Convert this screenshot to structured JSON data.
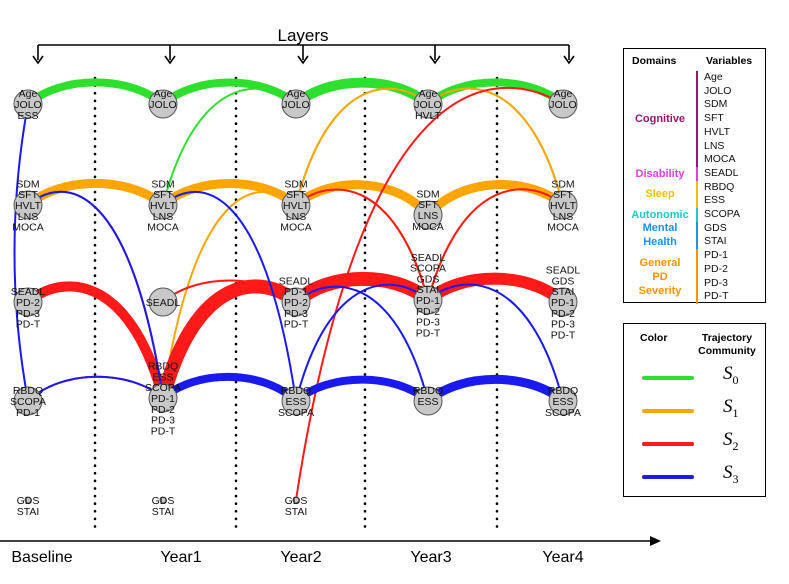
{
  "title": "Layers",
  "years": [
    "Baseline",
    "Year1",
    "Year2",
    "Year3",
    "Year4"
  ],
  "colors": {
    "S0": "#2ee02e",
    "S1": "#ffa500",
    "S2": "#ff1a1a",
    "S3": "#1a1aee"
  },
  "layers": [
    {
      "name": "Baseline",
      "nodes": [
        {
          "lines": [
            "Age",
            "JOLO",
            "ESS"
          ]
        },
        {
          "lines": [
            "SDM",
            "SFT",
            "HVLT",
            "LNS",
            "MOCA"
          ]
        },
        {
          "lines": [
            "SEADL",
            "PD-2",
            "PD-3",
            "PD-T"
          ]
        },
        {
          "lines": [
            "RBDQ",
            "SCOPA",
            "PD-1"
          ]
        },
        {
          "lines": [
            "GDS",
            "STAI"
          ]
        }
      ]
    },
    {
      "name": "Year1",
      "nodes": [
        {
          "lines": [
            "Age",
            "JOLO"
          ]
        },
        {
          "lines": [
            "SDM",
            "SFT",
            "HVLT",
            "LNS",
            "MOCA"
          ]
        },
        {
          "lines": [
            "SEADL"
          ]
        },
        {
          "lines": [
            "RBDQ",
            "ESS",
            "SCOPA",
            "PD-1",
            "PD-2",
            "PD-3",
            "PD-T"
          ]
        },
        {
          "lines": [
            "GDS",
            "STAI"
          ]
        }
      ]
    },
    {
      "name": "Year2",
      "nodes": [
        {
          "lines": [
            "Age",
            "JOLO"
          ]
        },
        {
          "lines": [
            "SDM",
            "SFT",
            "HVLT",
            "LNS",
            "MOCA"
          ]
        },
        {
          "lines": [
            "SEADL",
            "PD-1",
            "PD-2",
            "PD-3",
            "PD-T"
          ]
        },
        {
          "lines": [
            "RBDQ",
            "ESS",
            "SCOPA"
          ]
        },
        {
          "lines": [
            "GDS",
            "STAI"
          ]
        }
      ]
    },
    {
      "name": "Year3",
      "nodes": [
        {
          "lines": [
            "Age",
            "JOLO",
            "HVLT"
          ]
        },
        {
          "lines": [
            "SDM",
            "SFT",
            "LNS",
            "MOCA"
          ]
        },
        {
          "lines": [
            "SEADL",
            "SCOPA",
            "GDS",
            "STAI",
            "PD-1",
            "PD-2",
            "PD-3",
            "PD-T"
          ]
        },
        {
          "lines": [
            "RBDQ",
            "ESS"
          ]
        }
      ]
    },
    {
      "name": "Year4",
      "nodes": [
        {
          "lines": [
            "Age",
            "JOLO"
          ]
        },
        {
          "lines": [
            "SDM",
            "SFT",
            "HVLT",
            "LNS",
            "MOCA"
          ]
        },
        {
          "lines": [
            "SEADL",
            "GDS",
            "STAI",
            "PD-1",
            "PD-2",
            "PD-3",
            "PD-T"
          ]
        },
        {
          "lines": [
            "RBDQ",
            "ESS",
            "SCOPA"
          ]
        }
      ]
    }
  ],
  "edges": [
    {
      "from": [
        0,
        0
      ],
      "to": [
        1,
        0
      ],
      "community": "S0",
      "weight": 8
    },
    {
      "from": [
        1,
        0
      ],
      "to": [
        2,
        0
      ],
      "community": "S0",
      "weight": 8
    },
    {
      "from": [
        2,
        0
      ],
      "to": [
        3,
        0
      ],
      "community": "S0",
      "weight": 10
    },
    {
      "from": [
        3,
        0
      ],
      "to": [
        4,
        0
      ],
      "community": "S0",
      "weight": 8
    },
    {
      "from": [
        0,
        1
      ],
      "to": [
        1,
        1
      ],
      "community": "S0",
      "weight": 2
    },
    {
      "from": [
        1,
        1
      ],
      "to": [
        2,
        0
      ],
      "community": "S0",
      "weight": 2
    },
    {
      "from": [
        2,
        1
      ],
      "to": [
        3,
        0
      ],
      "community": "S0",
      "weight": 2
    },
    {
      "from": [
        3,
        0
      ],
      "to": [
        4,
        1
      ],
      "community": "S0",
      "weight": 2
    },
    {
      "from": [
        0,
        1
      ],
      "to": [
        1,
        1
      ],
      "community": "S1",
      "weight": 9
    },
    {
      "from": [
        1,
        1
      ],
      "to": [
        2,
        1
      ],
      "community": "S1",
      "weight": 9
    },
    {
      "from": [
        2,
        1
      ],
      "to": [
        3,
        1
      ],
      "community": "S1",
      "weight": 9
    },
    {
      "from": [
        3,
        1
      ],
      "to": [
        4,
        1
      ],
      "community": "S1",
      "weight": 9
    },
    {
      "from": [
        2,
        1
      ],
      "to": [
        3,
        0
      ],
      "community": "S1",
      "weight": 2
    },
    {
      "from": [
        3,
        0
      ],
      "to": [
        4,
        1
      ],
      "community": "S1",
      "weight": 2
    },
    {
      "from": [
        0,
        2
      ],
      "to": [
        1,
        3
      ],
      "community": "S1",
      "weight": 2
    },
    {
      "from": [
        1,
        3
      ],
      "to": [
        2,
        1
      ],
      "community": "S1",
      "weight": 2
    },
    {
      "from": [
        2,
        1
      ],
      "to": [
        3,
        2
      ],
      "community": "S1",
      "weight": 2
    },
    {
      "from": [
        3,
        2
      ],
      "to": [
        4,
        1
      ],
      "community": "S1",
      "weight": 2
    },
    {
      "from": [
        0,
        1
      ],
      "to": [
        1,
        3
      ],
      "community": "S2",
      "weight": 2
    },
    {
      "from": [
        0,
        2
      ],
      "to": [
        1,
        3
      ],
      "community": "S2",
      "weight": 10
    },
    {
      "from": [
        0,
        3
      ],
      "to": [
        1,
        3
      ],
      "community": "S2",
      "weight": 2
    },
    {
      "from": [
        1,
        3
      ],
      "to": [
        2,
        2
      ],
      "community": "S2",
      "weight": 14
    },
    {
      "from": [
        1,
        2
      ],
      "to": [
        2,
        2
      ],
      "community": "S2",
      "weight": 2
    },
    {
      "from": [
        2,
        2
      ],
      "to": [
        3,
        2
      ],
      "community": "S2",
      "weight": 14
    },
    {
      "from": [
        3,
        2
      ],
      "to": [
        4,
        2
      ],
      "community": "S2",
      "weight": 12
    },
    {
      "from": [
        2,
        1
      ],
      "to": [
        3,
        2
      ],
      "community": "S2",
      "weight": 2
    },
    {
      "from": [
        3,
        2
      ],
      "to": [
        4,
        1
      ],
      "community": "S2",
      "weight": 2
    },
    {
      "from": [
        2,
        4
      ],
      "to": [
        4,
        0
      ],
      "community": "S2",
      "weight": 2
    },
    {
      "from": [
        0,
        0
      ],
      "to": [
        0,
        3
      ],
      "community": "S3",
      "weight": 2
    },
    {
      "from": [
        0,
        3
      ],
      "to": [
        1,
        3
      ],
      "community": "S3",
      "weight": 2
    },
    {
      "from": [
        0,
        1
      ],
      "to": [
        1,
        3
      ],
      "community": "S3",
      "weight": 2
    },
    {
      "from": [
        1,
        3
      ],
      "to": [
        2,
        3
      ],
      "community": "S3",
      "weight": 8
    },
    {
      "from": [
        1,
        1
      ],
      "to": [
        2,
        3
      ],
      "community": "S3",
      "weight": 2
    },
    {
      "from": [
        2,
        3
      ],
      "to": [
        3,
        3
      ],
      "community": "S3",
      "weight": 8
    },
    {
      "from": [
        3,
        3
      ],
      "to": [
        4,
        3
      ],
      "community": "S3",
      "weight": 9
    },
    {
      "from": [
        2,
        3
      ],
      "to": [
        3,
        2
      ],
      "community": "S3",
      "weight": 2
    },
    {
      "from": [
        2,
        2
      ],
      "to": [
        3,
        3
      ],
      "community": "S3",
      "weight": 2
    },
    {
      "from": [
        3,
        2
      ],
      "to": [
        4,
        3
      ],
      "community": "S3",
      "weight": 2
    }
  ],
  "legend": {
    "domains_header": "Domains",
    "variables_header": "Variables",
    "domains": [
      {
        "name": "Cognitive",
        "color": "#a0146e",
        "variables": [
          "Age",
          "JOLO",
          "SDM",
          "SFT",
          "HVLT",
          "LNS",
          "MOCA"
        ]
      },
      {
        "name": "Disability",
        "color": "#e040e0",
        "variables": [
          "SEADL"
        ]
      },
      {
        "name": "Sleep",
        "color": "#f0c000",
        "variables": [
          "RBDQ",
          "ESS"
        ]
      },
      {
        "name": "Autonomic",
        "color": "#20c8c8",
        "variables": [
          "SCOPA"
        ]
      },
      {
        "name": "Mental Health",
        "color": "#2090e8",
        "variables": [
          "GDS",
          "STAI"
        ]
      },
      {
        "name": "General PD Severity",
        "color": "#ff9500",
        "variables": [
          "PD-1",
          "PD-2",
          "PD-3",
          "PD-T"
        ]
      }
    ],
    "color_header": "Color",
    "community_header": "Trajectory Community",
    "communities": [
      {
        "symbol": "S",
        "index": "0",
        "key": "S0"
      },
      {
        "symbol": "S",
        "index": "1",
        "key": "S1"
      },
      {
        "symbol": "S",
        "index": "2",
        "key": "S2"
      },
      {
        "symbol": "S",
        "index": "3",
        "key": "S3"
      }
    ]
  }
}
